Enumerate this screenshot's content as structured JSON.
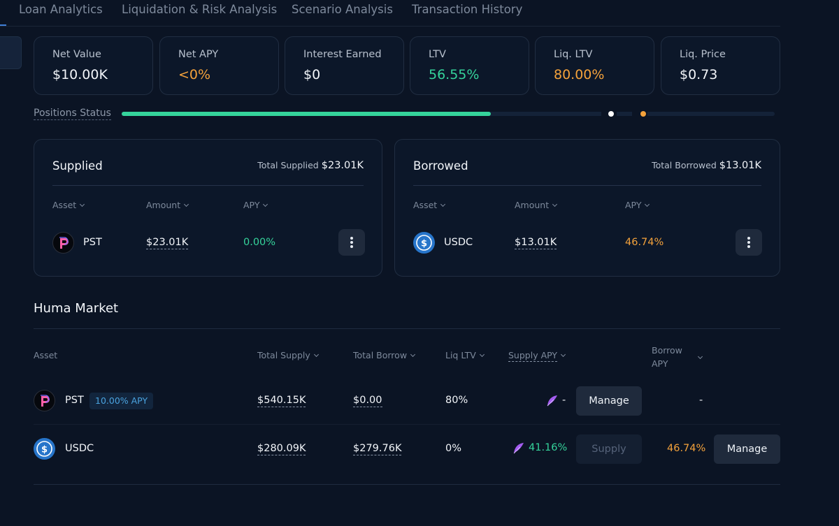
{
  "tabs": [
    "Loan Analytics",
    "Liquidation & Risk Analysis",
    "Scenario Analysis",
    "Transaction History"
  ],
  "stats": [
    {
      "label": "Net Value",
      "value": "$10.00K"
    },
    {
      "label": "Net APY",
      "value": "<0%"
    },
    {
      "label": "Interest Earned",
      "value": "$0"
    },
    {
      "label": "LTV",
      "value": "56.55%"
    },
    {
      "label": "Liq. LTV",
      "value": "80.00%"
    },
    {
      "label": "Liq. Price",
      "value": "$0.73"
    }
  ],
  "positions_status": {
    "label": "Positions Status",
    "ltv_progress_fraction": 0.5655,
    "colors": {
      "fill": "#35d39b",
      "current_marker": "#ffffff",
      "liquidation_marker": "#f4a23b"
    }
  },
  "supplied": {
    "title": "Supplied",
    "total_label": "Total Supplied",
    "total_value": "$23.01K",
    "columns": {
      "asset": "Asset",
      "amount": "Amount",
      "apy": "APY"
    },
    "rows": [
      {
        "asset": "PST",
        "icon": "pst-logo-icon",
        "amount": "$23.01K",
        "apy": "0.00%"
      }
    ]
  },
  "borrowed": {
    "title": "Borrowed",
    "total_label": "Total Borrowed",
    "total_value": "$13.01K",
    "columns": {
      "asset": "Asset",
      "amount": "Amount",
      "apy": "APY"
    },
    "rows": [
      {
        "asset": "USDC",
        "icon": "usdc-logo-icon",
        "amount": "$13.01K",
        "apy": "46.74%"
      }
    ]
  },
  "market": {
    "title": "Huma Market",
    "columns": {
      "asset": "Asset",
      "total_supply": "Total Supply",
      "total_borrow": "Total Borrow",
      "liq_ltv": "Liq LTV",
      "supply_apy": "Supply APY",
      "borrow_apy_line1": "Borrow",
      "borrow_apy_line2": "APY"
    },
    "rows": [
      {
        "asset": "PST",
        "badge": "10.00% APY",
        "total_supply": "$540.15K",
        "total_borrow": "$0.00",
        "liq_ltv": "80%",
        "supply_apy": "-",
        "borrow_apy": "-",
        "manage_label": "Manage"
      },
      {
        "asset": "USDC",
        "total_supply": "$280.09K",
        "total_borrow": "$279.76K",
        "liq_ltv": "0%",
        "supply_apy": "41.16%",
        "borrow_apy": "46.74%",
        "supply_label": "Supply",
        "manage_label": "Manage"
      }
    ]
  },
  "colors": {
    "positive": "#35d39b",
    "warning": "#f4a23b",
    "accent": "#3f7fd6",
    "feather": "#a35cf0"
  }
}
